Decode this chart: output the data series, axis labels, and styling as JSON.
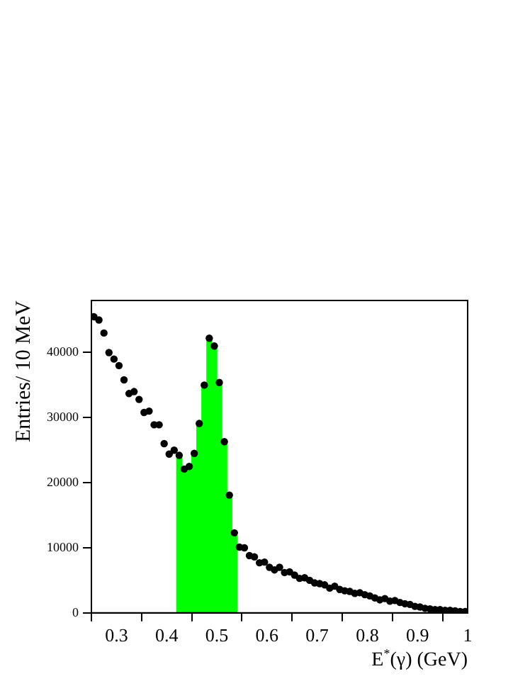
{
  "chart_data": {
    "type": "scatter",
    "xlabel": "E$^{*}$(γ)  (GeV)",
    "ylabel": "Entries/ 10 MeV",
    "xlim": [
      0.25,
      1
    ],
    "xticks": [
      0.3,
      0.4,
      0.5,
      0.6,
      0.7,
      0.8,
      0.9,
      1
    ],
    "ylim": [
      0,
      48000
    ],
    "yticks": [
      0,
      10000,
      20000,
      30000,
      40000
    ],
    "grid": false,
    "legend": false,
    "series": [
      {
        "type": "histogram",
        "color": "#00ff00",
        "bins": [
          0.42,
          0.43,
          0.44,
          0.45,
          0.46,
          0.47,
          0.48,
          0.49,
          0.5,
          0.51,
          0.52,
          0.53,
          0.54
        ],
        "values": [
          24200,
          22100,
          22500,
          24500,
          29100,
          35000,
          42200,
          41000,
          35400,
          26300,
          18100,
          12300
        ]
      },
      {
        "color": "#000000",
        "marker": "circle",
        "x": [
          0.255,
          0.265,
          0.275,
          0.285,
          0.295,
          0.305,
          0.315,
          0.325,
          0.335,
          0.345,
          0.355,
          0.365,
          0.375,
          0.385,
          0.395,
          0.405,
          0.415,
          0.425,
          0.435,
          0.445,
          0.455,
          0.465,
          0.475,
          0.485,
          0.495,
          0.505,
          0.515,
          0.525,
          0.535,
          0.545,
          0.555,
          0.565,
          0.575,
          0.585,
          0.595,
          0.605,
          0.615,
          0.625,
          0.635,
          0.645,
          0.655,
          0.665,
          0.675,
          0.685,
          0.695,
          0.705,
          0.715,
          0.725,
          0.735,
          0.745,
          0.755,
          0.765,
          0.775,
          0.785,
          0.795,
          0.805,
          0.815,
          0.825,
          0.835,
          0.845,
          0.855,
          0.865,
          0.875,
          0.885,
          0.895,
          0.905,
          0.915,
          0.925,
          0.935,
          0.945,
          0.955,
          0.965,
          0.975,
          0.985,
          0.995
        ],
        "values": [
          45500,
          45000,
          43000,
          40000,
          39000,
          38000,
          35800,
          33700,
          34000,
          32800,
          30800,
          31000,
          28900,
          28900,
          26000,
          24400,
          25000,
          24200,
          22100,
          22500,
          24500,
          29100,
          35000,
          42200,
          41000,
          35400,
          26300,
          18100,
          12300,
          10100,
          10000,
          8800,
          8600,
          7700,
          7800,
          7000,
          6600,
          7000,
          6200,
          6300,
          5800,
          5300,
          5400,
          5000,
          4600,
          4500,
          4300,
          3800,
          4100,
          3600,
          3400,
          3300,
          3000,
          3100,
          2800,
          2600,
          2300,
          2000,
          2200,
          1800,
          1900,
          1600,
          1400,
          1300,
          1000,
          900,
          700,
          600,
          500,
          500,
          400,
          400,
          300,
          200,
          200
        ]
      }
    ]
  }
}
